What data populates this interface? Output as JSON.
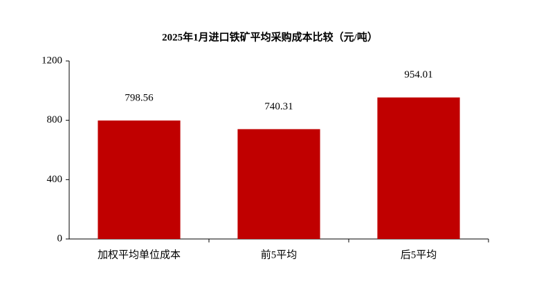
{
  "chart_data": {
    "type": "bar",
    "title": "2025年1月进口铁矿平均采购成本比较（元/吨）",
    "categories": [
      "加权平均单位成本",
      "前5平均",
      "后5平均"
    ],
    "values": [
      798.56,
      740.31,
      954.01
    ],
    "color": "#c00000",
    "ylim": [
      0,
      1200
    ],
    "yticks": [
      0,
      400,
      800,
      1200
    ],
    "grid": false
  }
}
